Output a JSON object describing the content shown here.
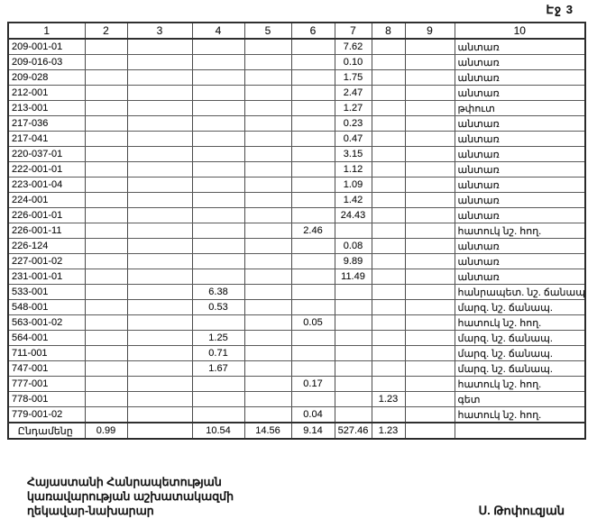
{
  "page_label": "Էջ 3",
  "table": {
    "headers": [
      "1",
      "2",
      "3",
      "4",
      "5",
      "6",
      "7",
      "8",
      "9",
      "10"
    ],
    "rows": [
      [
        "209-001-01",
        "",
        "",
        "",
        "",
        "",
        "7.62",
        "",
        "",
        "անտառ"
      ],
      [
        "209-016-03",
        "",
        "",
        "",
        "",
        "",
        "0.10",
        "",
        "",
        "անտառ"
      ],
      [
        "209-028",
        "",
        "",
        "",
        "",
        "",
        "1.75",
        "",
        "",
        "անտառ"
      ],
      [
        "212-001",
        "",
        "",
        "",
        "",
        "",
        "2.47",
        "",
        "",
        "անտառ"
      ],
      [
        "213-001",
        "",
        "",
        "",
        "",
        "",
        "1.27",
        "",
        "",
        "թփուտ"
      ],
      [
        "217-036",
        "",
        "",
        "",
        "",
        "",
        "0.23",
        "",
        "",
        "անտառ"
      ],
      [
        "217-041",
        "",
        "",
        "",
        "",
        "",
        "0.47",
        "",
        "",
        "անտառ"
      ],
      [
        "220-037-01",
        "",
        "",
        "",
        "",
        "",
        "3.15",
        "",
        "",
        "անտառ"
      ],
      [
        "222-001-01",
        "",
        "",
        "",
        "",
        "",
        "1.12",
        "",
        "",
        "անտառ"
      ],
      [
        "223-001-04",
        "",
        "",
        "",
        "",
        "",
        "1.09",
        "",
        "",
        "անտառ"
      ],
      [
        "224-001",
        "",
        "",
        "",
        "",
        "",
        "1.42",
        "",
        "",
        "անտառ"
      ],
      [
        "226-001-01",
        "",
        "",
        "",
        "",
        "",
        "24.43",
        "",
        "",
        "անտառ"
      ],
      [
        "226-001-11",
        "",
        "",
        "",
        "",
        "2.46",
        "",
        "",
        "",
        "հատուկ նշ. հող."
      ],
      [
        "226-124",
        "",
        "",
        "",
        "",
        "",
        "0.08",
        "",
        "",
        "անտառ"
      ],
      [
        "227-001-02",
        "",
        "",
        "",
        "",
        "",
        "9.89",
        "",
        "",
        "անտառ"
      ],
      [
        "231-001-01",
        "",
        "",
        "",
        "",
        "",
        "11.49",
        "",
        "",
        "անտառ"
      ],
      [
        "533-001",
        "",
        "",
        "6.38",
        "",
        "",
        "",
        "",
        "",
        "հանրապետ. նշ. ճանապ."
      ],
      [
        "548-001",
        "",
        "",
        "0.53",
        "",
        "",
        "",
        "",
        "",
        "մարզ. նշ. ճանապ."
      ],
      [
        "563-001-02",
        "",
        "",
        "",
        "",
        "0.05",
        "",
        "",
        "",
        "հատուկ նշ. հող."
      ],
      [
        "564-001",
        "",
        "",
        "1.25",
        "",
        "",
        "",
        "",
        "",
        "մարզ. նշ. ճանապ."
      ],
      [
        "711-001",
        "",
        "",
        "0.71",
        "",
        "",
        "",
        "",
        "",
        "մարզ. նշ. ճանապ."
      ],
      [
        "747-001",
        "",
        "",
        "1.67",
        "",
        "",
        "",
        "",
        "",
        "մարզ. նշ. ճանապ."
      ],
      [
        "777-001",
        "",
        "",
        "",
        "",
        "0.17",
        "",
        "",
        "",
        "հատուկ նշ. հող."
      ],
      [
        "778-001",
        "",
        "",
        "",
        "",
        "",
        "",
        "1.23",
        "",
        "գետ"
      ],
      [
        "779-001-02",
        "",
        "",
        "",
        "",
        "0.04",
        "",
        "",
        "",
        "հատուկ նշ. հող."
      ]
    ],
    "total_row": [
      "Ընդամենը",
      "0.99",
      "",
      "10.54",
      "14.56",
      "9.14",
      "527.46",
      "1.23",
      "",
      ""
    ]
  },
  "footer": {
    "left_lines": [
      "Հայաստանի Հանրապետության",
      "կառավարության աշխատակազմի",
      "ղեկավար-նախարար"
    ],
    "signature": "Ս. Թոփուզյան"
  }
}
